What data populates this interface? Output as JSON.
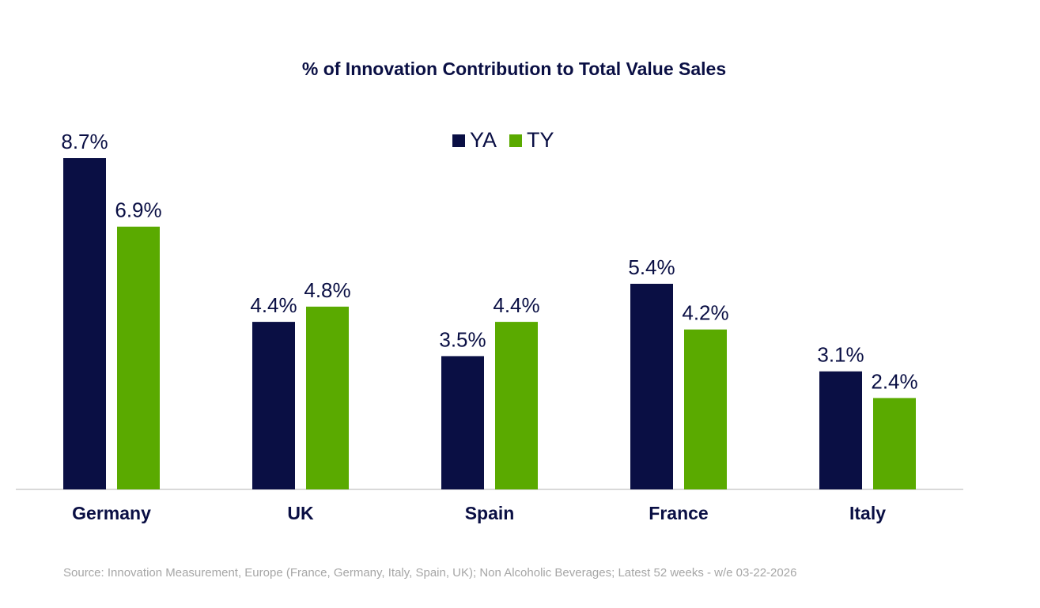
{
  "chart_data": {
    "type": "bar",
    "title": "% of Innovation Contribution to Total Value Sales",
    "categories": [
      "Germany",
      "UK",
      "Spain",
      "France",
      "Italy"
    ],
    "series": [
      {
        "name": "YA",
        "color": "#0a0f44",
        "values": [
          8.7,
          4.4,
          3.5,
          5.4,
          3.1
        ],
        "labels": [
          "8.7%",
          "4.4%",
          "3.5%",
          "5.4%",
          "3.1%"
        ]
      },
      {
        "name": "TY",
        "color": "#5aaa00",
        "values": [
          6.9,
          4.8,
          4.4,
          4.2,
          2.4
        ],
        "labels": [
          "6.9%",
          "4.8%",
          "4.4%",
          "4.2%",
          "2.4%"
        ]
      }
    ],
    "ylim": [
      0,
      9.5
    ],
    "grid": false,
    "legend_position": "top-center",
    "source": "Source: Innovation Measurement, Europe (France, Germany, Italy, Spain, UK); Non Alcoholic Beverages; Latest 52 weeks - w/e 03-22-2026"
  }
}
